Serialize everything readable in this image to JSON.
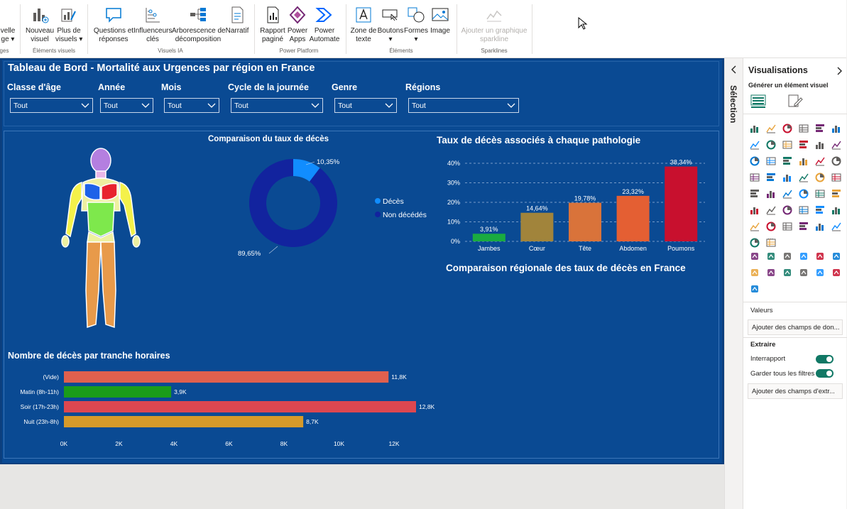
{
  "ribbon": {
    "buttons": [
      {
        "id": "nouvelle-page",
        "l1": "velle",
        "l2": "ge ▾"
      },
      {
        "id": "nouveau-visuel",
        "l1": "Nouveau",
        "l2": "visuel"
      },
      {
        "id": "plus-visuels",
        "l1": "Plus de",
        "l2": "visuels ▾"
      },
      {
        "id": "questions-reponses",
        "l1": "Questions et",
        "l2": "réponses"
      },
      {
        "id": "influenceurs",
        "l1": "Influenceurs",
        "l2": "clés"
      },
      {
        "id": "arborescence",
        "l1": "Arborescence de",
        "l2": "décomposition"
      },
      {
        "id": "narratif",
        "l1": "Narratif",
        "l2": ""
      },
      {
        "id": "rapport-pagine",
        "l1": "Rapport",
        "l2": "paginé"
      },
      {
        "id": "power-apps",
        "l1": "Power",
        "l2": "Apps"
      },
      {
        "id": "power-automate",
        "l1": "Power",
        "l2": "Automate"
      },
      {
        "id": "zone-texte",
        "l1": "Zone de",
        "l2": "texte"
      },
      {
        "id": "boutons",
        "l1": "Boutons",
        "l2": "▾"
      },
      {
        "id": "formes",
        "l1": "Formes",
        "l2": "▾"
      },
      {
        "id": "image",
        "l1": "Image",
        "l2": ""
      },
      {
        "id": "sparkline",
        "l1": "Ajouter un graphique",
        "l2": "sparkline"
      }
    ],
    "groups": {
      "pages": "ges",
      "elements_visuels": "Éléments visuels",
      "visuels_ia": "Visuels IA",
      "power_platform": "Power Platform",
      "elements": "Éléments",
      "sparklines": "Sparklines"
    }
  },
  "report": {
    "title": "Tableau de Bord - Mortalité aux Urgences par région en France",
    "slicers": [
      {
        "label": "Classe d'âge",
        "value": "Tout"
      },
      {
        "label": "Année",
        "value": "Tout"
      },
      {
        "label": "Mois",
        "value": "Tout"
      },
      {
        "label": "Cycle de la journée",
        "value": "Tout"
      },
      {
        "label": "Genre",
        "value": "Tout"
      },
      {
        "label": "Régions",
        "value": "Tout"
      }
    ],
    "donut_title": "Comparaison du taux de décès",
    "pathology_title": "Taux de décès associés à chaque pathologie",
    "regional_title": "Comparaison régionale des taux de décès en France",
    "hourly_title": "Nombre de décès par tranche horaires"
  },
  "chart_data": [
    {
      "type": "pie",
      "title": "Comparaison du taux de décès",
      "categories": [
        "Décès",
        "Non décédés"
      ],
      "values": [
        10.35,
        89.65
      ],
      "value_labels": [
        "10,35%",
        "89,65%"
      ],
      "colors": [
        "#118dff",
        "#12239e"
      ],
      "legend": "right"
    },
    {
      "type": "bar",
      "title": "Taux de décès associés à chaque pathologie",
      "categories": [
        "Jambes",
        "Cœur",
        "Tête",
        "Abdomen",
        "Poumons"
      ],
      "values": [
        3.91,
        14.64,
        19.78,
        23.32,
        38.34
      ],
      "value_labels": [
        "3,91%",
        "14,64%",
        "19,78%",
        "23,32%",
        "38,34%"
      ],
      "colors": [
        "#1aab40",
        "#a1843b",
        "#d9733a",
        "#e45f33",
        "#c8102e"
      ],
      "ylim": [
        0,
        40
      ],
      "yticks": [
        "0%",
        "10%",
        "20%",
        "30%",
        "40%"
      ],
      "grid": true
    },
    {
      "type": "bar",
      "orientation": "horizontal",
      "title": "Nombre de décès par tranche horaires",
      "categories": [
        "(Vide)",
        "Matin (8h-11h)",
        "Soir (17h-23h)",
        "Nuit (23h-8h)"
      ],
      "values": [
        11800,
        3900,
        12800,
        8700
      ],
      "value_labels": [
        "11,8K",
        "3,9K",
        "12,8K",
        "8,7K"
      ],
      "colors": [
        "#e0604e",
        "#1a9c1a",
        "#dd4750",
        "#d69a2a"
      ],
      "xlim": [
        0,
        12800
      ],
      "xticks": [
        "0K",
        "2K",
        "4K",
        "6K",
        "8K",
        "10K",
        "12K"
      ]
    }
  ],
  "selection_pane": {
    "label": "Sélection"
  },
  "visualisations_pane": {
    "title": "Visualisations",
    "subtitle": "Générer un élément visuel",
    "more": "...",
    "valeurs_label": "Valeurs",
    "valeurs_field": "Ajouter des champs de don...",
    "extraire_label": "Extraire",
    "interrapport": "Interrapport",
    "garder_filtres": "Garder tous les filtres",
    "extraire_field": "Ajouter des champs d'extr..."
  }
}
